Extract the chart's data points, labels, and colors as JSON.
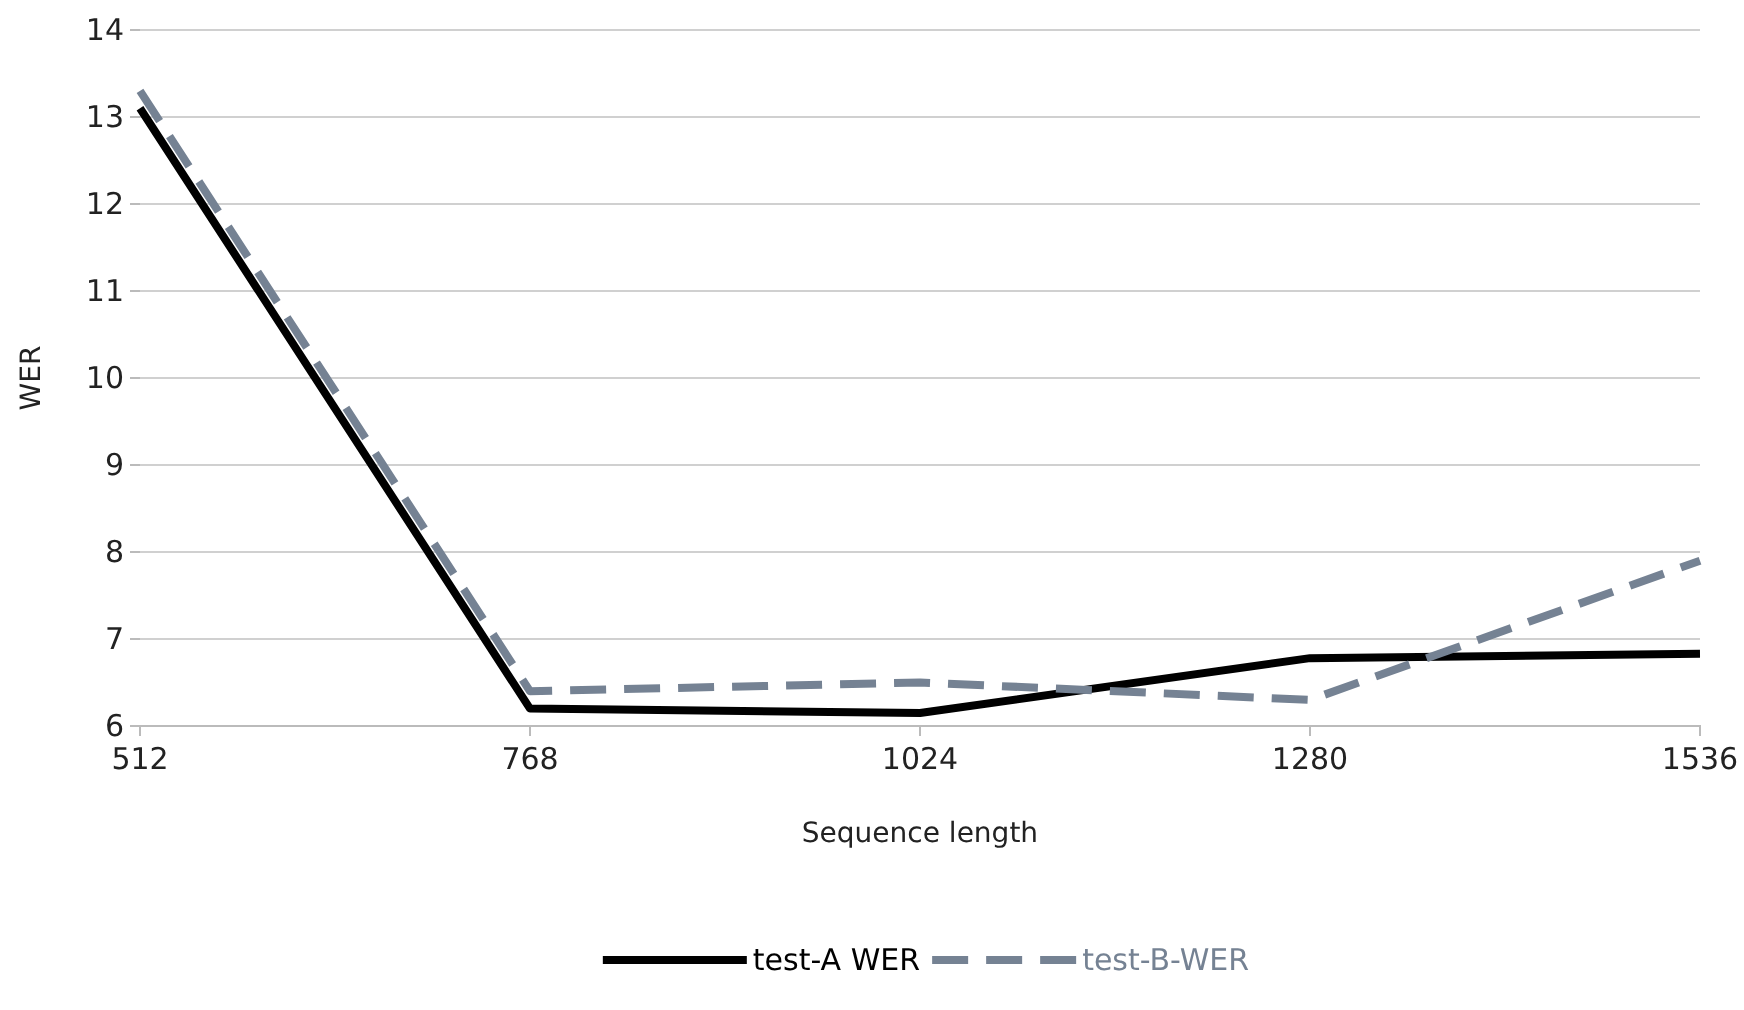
{
  "chart_data": {
    "type": "line",
    "xlabel": "Sequence length",
    "ylabel": "WER",
    "x": [
      512,
      768,
      1024,
      1280,
      1536
    ],
    "xlim": [
      512,
      1536
    ],
    "xticks": [
      512,
      768,
      1024,
      1280,
      1536
    ],
    "ylim": [
      6,
      14
    ],
    "yticks": [
      6,
      7,
      8,
      9,
      10,
      11,
      12,
      13,
      14
    ],
    "grid": "y",
    "legend": "bottom",
    "marker": "none",
    "series": [
      {
        "name": "test-A WER",
        "color": "#000000",
        "line_style": "solid",
        "values": [
          13.1,
          6.2,
          6.15,
          6.78,
          6.83
        ]
      },
      {
        "name": "test-B-WER",
        "color": "#758293",
        "line_style": "dashed",
        "values": [
          13.3,
          6.4,
          6.5,
          6.3,
          7.9
        ]
      }
    ]
  }
}
